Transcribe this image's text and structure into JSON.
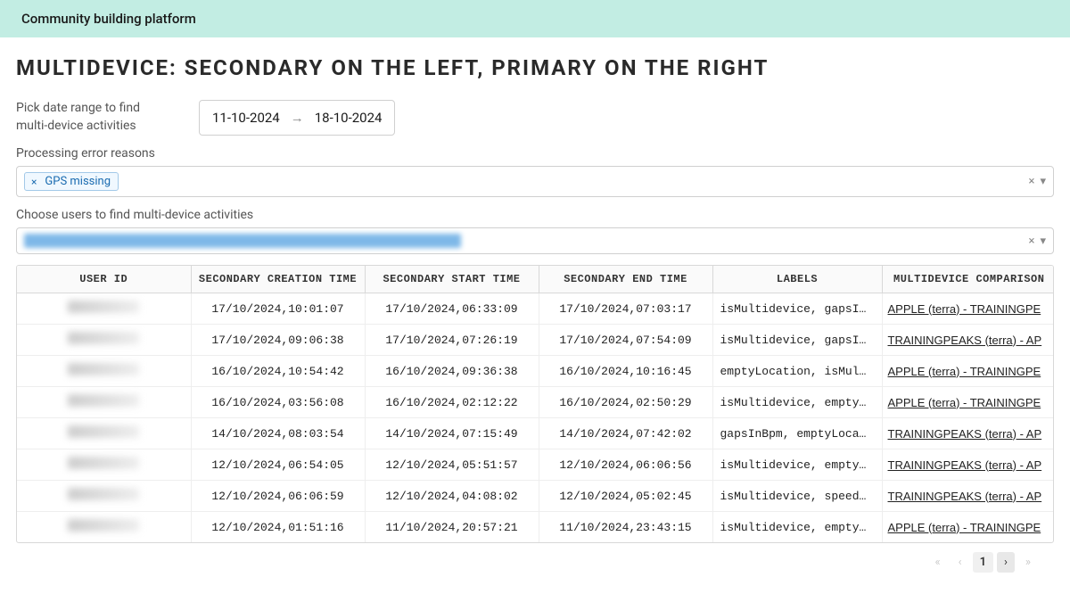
{
  "topbar": {
    "title": "Community building platform"
  },
  "page": {
    "title": "MULTIDEVICE: SECONDARY ON THE LEFT, PRIMARY ON THE RIGHT",
    "date_label": "Pick date range to find multi-device activities",
    "date_start": "11-10-2024",
    "date_end": "18-10-2024",
    "filter1_label": "Processing error reasons",
    "filter1_tag": "GPS missing",
    "filter2_label": "Choose users to find multi-device activities"
  },
  "table": {
    "columns": [
      "USER ID",
      "SECONDARY CREATION TIME",
      "SECONDARY START TIME",
      "SECONDARY END TIME",
      "LABELS",
      "MULTIDEVICE COMPARISON"
    ],
    "rows": [
      {
        "creation": "17/10/2024,10:01:07",
        "start": "17/10/2024,06:33:09",
        "end": "17/10/2024,07:03:17",
        "labels": "isMultidevice, gapsI…",
        "comp": "APPLE (terra) - TRAININGPE"
      },
      {
        "creation": "17/10/2024,09:06:38",
        "start": "17/10/2024,07:26:19",
        "end": "17/10/2024,07:54:09",
        "labels": "isMultidevice, gapsI…",
        "comp": "TRAININGPEAKS (terra) - AP"
      },
      {
        "creation": "16/10/2024,10:54:42",
        "start": "16/10/2024,09:36:38",
        "end": "16/10/2024,10:16:45",
        "labels": "emptyLocation, isMul…",
        "comp": "APPLE (terra) - TRAININGPE"
      },
      {
        "creation": "16/10/2024,03:56:08",
        "start": "16/10/2024,02:12:22",
        "end": "16/10/2024,02:50:29",
        "labels": "isMultidevice, empty…",
        "comp": "APPLE (terra) - TRAININGPE"
      },
      {
        "creation": "14/10/2024,08:03:54",
        "start": "14/10/2024,07:15:49",
        "end": "14/10/2024,07:42:02",
        "labels": "gapsInBpm, emptyLoca…",
        "comp": "TRAININGPEAKS (terra) - AP"
      },
      {
        "creation": "12/10/2024,06:54:05",
        "start": "12/10/2024,05:51:57",
        "end": "12/10/2024,06:06:56",
        "labels": "isMultidevice, empty…",
        "comp": "TRAININGPEAKS (terra) - AP"
      },
      {
        "creation": "12/10/2024,06:06:59",
        "start": "12/10/2024,04:08:02",
        "end": "12/10/2024,05:02:45",
        "labels": "isMultidevice, speed…",
        "comp": "TRAININGPEAKS (terra) - AP"
      },
      {
        "creation": "12/10/2024,01:51:16",
        "start": "11/10/2024,20:57:21",
        "end": "11/10/2024,23:43:15",
        "labels": "isMultidevice, empty…",
        "comp": "APPLE (terra) - TRAININGPE"
      }
    ]
  },
  "pagination": {
    "first": "«",
    "prev": "‹",
    "current": "1",
    "next": "›",
    "last": "»"
  }
}
